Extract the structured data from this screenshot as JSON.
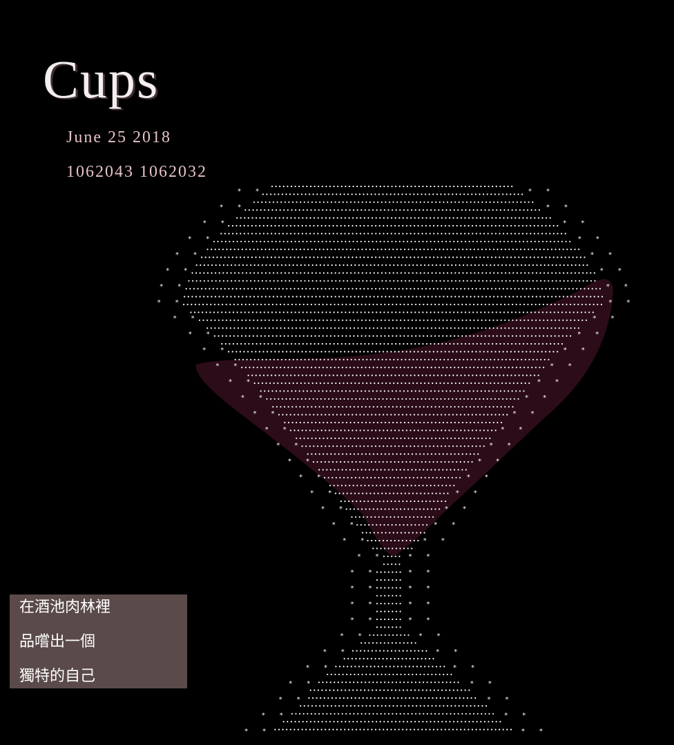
{
  "header": {
    "title": "Cups",
    "date": "June 25 2018",
    "ids": "1062043 1062032"
  },
  "poem": {
    "lines": [
      "在酒池肉林裡",
      "品嚐出一個",
      "獨特的自己"
    ]
  },
  "colors": {
    "background": "#000000",
    "dots": "#ffffff",
    "wine": "#2b0c18",
    "meta_text": "#e6c3c6",
    "poem_box": "#5b4a4a"
  }
}
